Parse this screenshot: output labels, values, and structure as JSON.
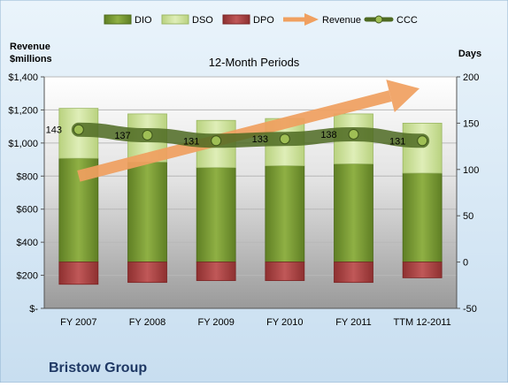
{
  "company": "Bristow Group",
  "chart_data": {
    "type": "bar",
    "title": "12-Month Periods",
    "ylabel_left_line1": "Revenue",
    "ylabel_left_line2": "$millions",
    "ylabel_right": "Days",
    "categories": [
      "FY 2007",
      "FY 2008",
      "FY 2009",
      "FY 2010",
      "FY 2011",
      "TTM 12-2011"
    ],
    "ylim_left": [
      0,
      1400
    ],
    "ylim_right": [
      -50,
      200
    ],
    "left_ticks": [
      0,
      200,
      400,
      600,
      800,
      1000,
      1200,
      1400
    ],
    "left_tick_labels": [
      "$-",
      "$200",
      "$400",
      "$600",
      "$800",
      "$1,000",
      "$1,200",
      "$1,400"
    ],
    "right_ticks": [
      -50,
      0,
      50,
      100,
      150,
      200
    ],
    "right_tick_labels": [
      "-50",
      "0",
      "50",
      "100",
      "150",
      "200"
    ],
    "series": [
      {
        "name": "DIO",
        "axis": "right",
        "kind": "stacked-bar",
        "values": [
          112,
          108,
          102,
          104,
          106,
          96
        ]
      },
      {
        "name": "DSO",
        "axis": "right",
        "kind": "stacked-bar",
        "values": [
          54,
          52,
          51,
          51,
          54,
          54
        ]
      },
      {
        "name": "DPO",
        "axis": "right",
        "kind": "negative-bar",
        "values": [
          -24,
          -22,
          -20,
          -20,
          -22,
          -17
        ]
      },
      {
        "name": "Revenue",
        "axis": "left",
        "kind": "arrow",
        "values": [
          800,
          950,
          1040,
          1090,
          1170,
          1330
        ]
      },
      {
        "name": "CCC",
        "axis": "right",
        "kind": "line",
        "values": [
          143,
          137,
          131,
          133,
          138,
          131
        ]
      }
    ],
    "ccc_labels": [
      "143",
      "137",
      "131",
      "133",
      "138",
      "131"
    ],
    "legend_position": "top",
    "grid": true,
    "colors": {
      "DIO": "#7a9a33",
      "DSO": "#cfe2a0",
      "DPO": "#b04848",
      "Revenue": "#f0a060",
      "CCC": "#5d7a2e",
      "background_top": "#ffffff",
      "background_bottom": "#9c9c9c",
      "chart_bg": "#dcecf8"
    }
  }
}
